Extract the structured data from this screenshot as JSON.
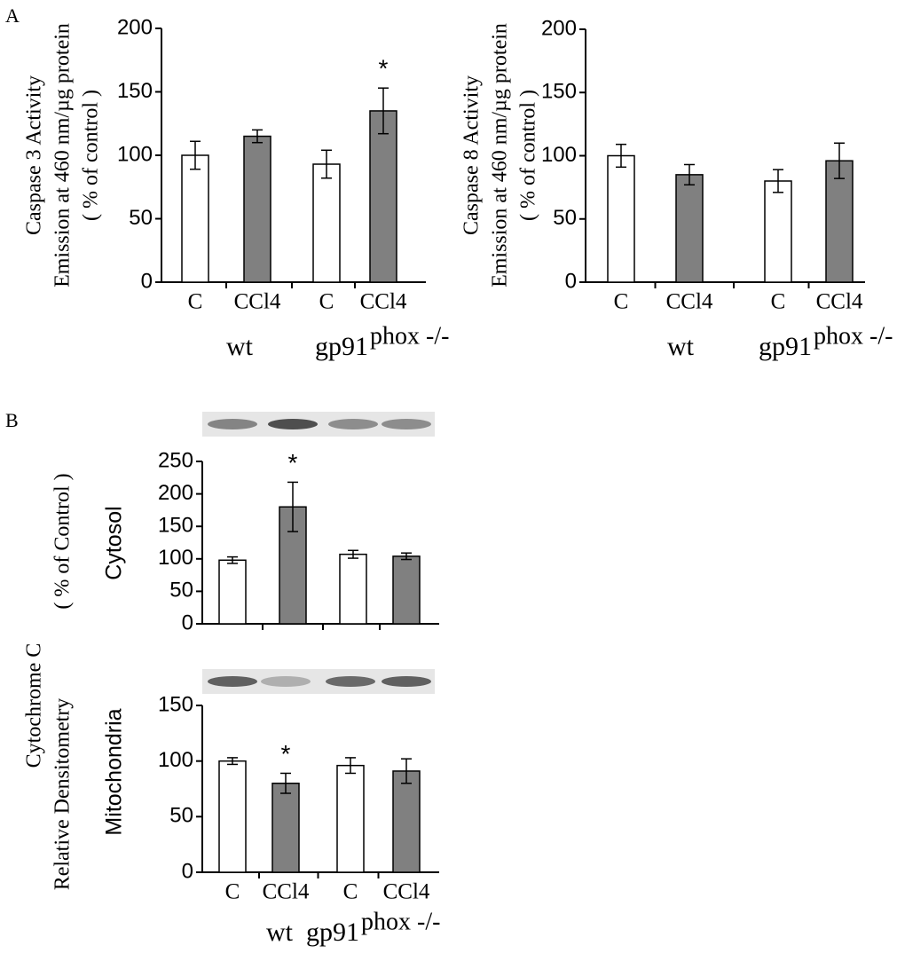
{
  "panel_labels": [
    "A",
    "B"
  ],
  "shared_y_label": [
    "Cytochrome C",
    "( % of Control )",
    "Relative Densitometry"
  ],
  "chart_data": [
    {
      "type": "bar",
      "y_label": [
        "Caspase 3 Activity",
        "Emission at 460 nm/µg protein",
        "( % of control )"
      ],
      "categories": [
        "C",
        "CCl4",
        "C",
        "CCl4"
      ],
      "values": [
        100,
        115,
        93,
        135
      ],
      "errors": [
        11,
        5,
        11,
        18
      ],
      "colors": [
        "#ffffff",
        "#808080",
        "#ffffff",
        "#808080"
      ],
      "groups": [
        {
          "label": "wt"
        },
        {
          "label": "gp91",
          "superscript": "phox -/-"
        }
      ],
      "annotations": [
        {
          "text": "*",
          "category": 3
        }
      ],
      "ylim": [
        0,
        200
      ],
      "yticks": [
        0,
        50,
        100,
        150,
        200
      ]
    },
    {
      "type": "bar",
      "y_label": [
        "Caspase 8 Activity",
        "Emission at 460 nm/µg protein",
        "( % of control )"
      ],
      "categories": [
        "C",
        "CCl4",
        "C",
        "CCl4"
      ],
      "values": [
        100,
        85,
        80,
        96
      ],
      "errors": [
        9,
        8,
        9,
        14
      ],
      "colors": [
        "#ffffff",
        "#808080",
        "#ffffff",
        "#808080"
      ],
      "groups": [
        {
          "label": "wt"
        },
        {
          "label": "gp91",
          "superscript": "phox -/-"
        }
      ],
      "annotations": [],
      "ylim": [
        0,
        200
      ],
      "yticks": [
        0,
        50,
        100,
        150,
        200
      ]
    },
    {
      "type": "bar",
      "y_label": [
        "Cytosol"
      ],
      "values": [
        98,
        180,
        107,
        104
      ],
      "errors": [
        5,
        38,
        6,
        5
      ],
      "colors": [
        "#ffffff",
        "#808080",
        "#ffffff",
        "#808080"
      ],
      "annotations": [
        {
          "text": "*",
          "category": 1
        }
      ],
      "ylim": [
        0,
        250
      ],
      "yticks": [
        0,
        50,
        100,
        150,
        200,
        250
      ]
    },
    {
      "type": "bar",
      "y_label": [
        "Mitochondria"
      ],
      "categories": [
        "C",
        "CCl4",
        "C",
        "CCl4"
      ],
      "values": [
        100,
        80,
        96,
        91
      ],
      "errors": [
        3,
        9,
        7,
        11
      ],
      "colors": [
        "#ffffff",
        "#808080",
        "#ffffff",
        "#808080"
      ],
      "groups": [
        {
          "label": "wt"
        },
        {
          "label": "gp91",
          "superscript": "phox -/-"
        }
      ],
      "annotations": [
        {
          "text": "*",
          "category": 1
        }
      ],
      "ylim": [
        0,
        150
      ],
      "yticks": [
        0,
        50,
        100,
        150
      ]
    }
  ]
}
